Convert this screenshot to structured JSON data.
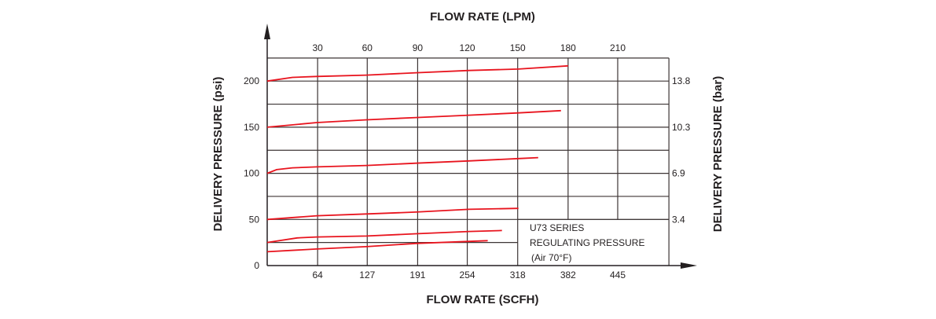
{
  "chart_data": {
    "type": "line",
    "title": "",
    "xlabel": "FLOW RATE (SCFH)",
    "xlabel_top": "FLOW RATE (LPM)",
    "ylabel": "DELIVERY PRESSURE (psi)",
    "ylabel_right": "DELIVERY PRESSURE (bar)",
    "xlim": [
      0,
      510
    ],
    "ylim": [
      0,
      225
    ],
    "grid": true,
    "x_ticks": [
      64,
      127,
      191,
      254,
      318,
      382,
      445
    ],
    "x_ticks_top": [
      30,
      60,
      90,
      120,
      150,
      180,
      210
    ],
    "y_ticks": [
      0,
      50,
      100,
      150,
      200
    ],
    "y_ticks_right": [
      {
        "psi": 50,
        "label": "3.4"
      },
      {
        "psi": 100,
        "label": "6.9"
      },
      {
        "psi": 150,
        "label": "10.3"
      },
      {
        "psi": 200,
        "label": "13.8"
      }
    ],
    "annotation": [
      "U73 SERIES",
      "REGULATING PRESSURE",
      "(Air 70°F)"
    ],
    "series_color": "#e8141e",
    "series": [
      {
        "x": [
          0,
          32,
          63,
          126,
          189,
          256,
          319,
          382
        ],
        "y": [
          200,
          204,
          205,
          206.5,
          209,
          211.5,
          213,
          216.5
        ]
      },
      {
        "x": [
          0,
          63,
          126,
          189,
          256,
          319,
          373
        ],
        "y": [
          150,
          155,
          158,
          160.5,
          163,
          165.5,
          168
        ]
      },
      {
        "x": [
          0,
          12,
          32,
          63,
          126,
          189,
          256,
          319,
          344
        ],
        "y": [
          100,
          104,
          106,
          107,
          108.5,
          111,
          113.5,
          116,
          117
        ]
      },
      {
        "x": [
          0,
          63,
          126,
          189,
          256,
          319
        ],
        "y": [
          50,
          54,
          56,
          58,
          61,
          62
        ]
      },
      {
        "x": [
          0,
          38,
          63,
          126,
          189,
          256,
          298
        ],
        "y": [
          25,
          30,
          31,
          32,
          34.5,
          37,
          38
        ]
      },
      {
        "x": [
          0,
          63,
          126,
          189,
          280
        ],
        "y": [
          15,
          18,
          20.5,
          24,
          27
        ]
      }
    ]
  }
}
